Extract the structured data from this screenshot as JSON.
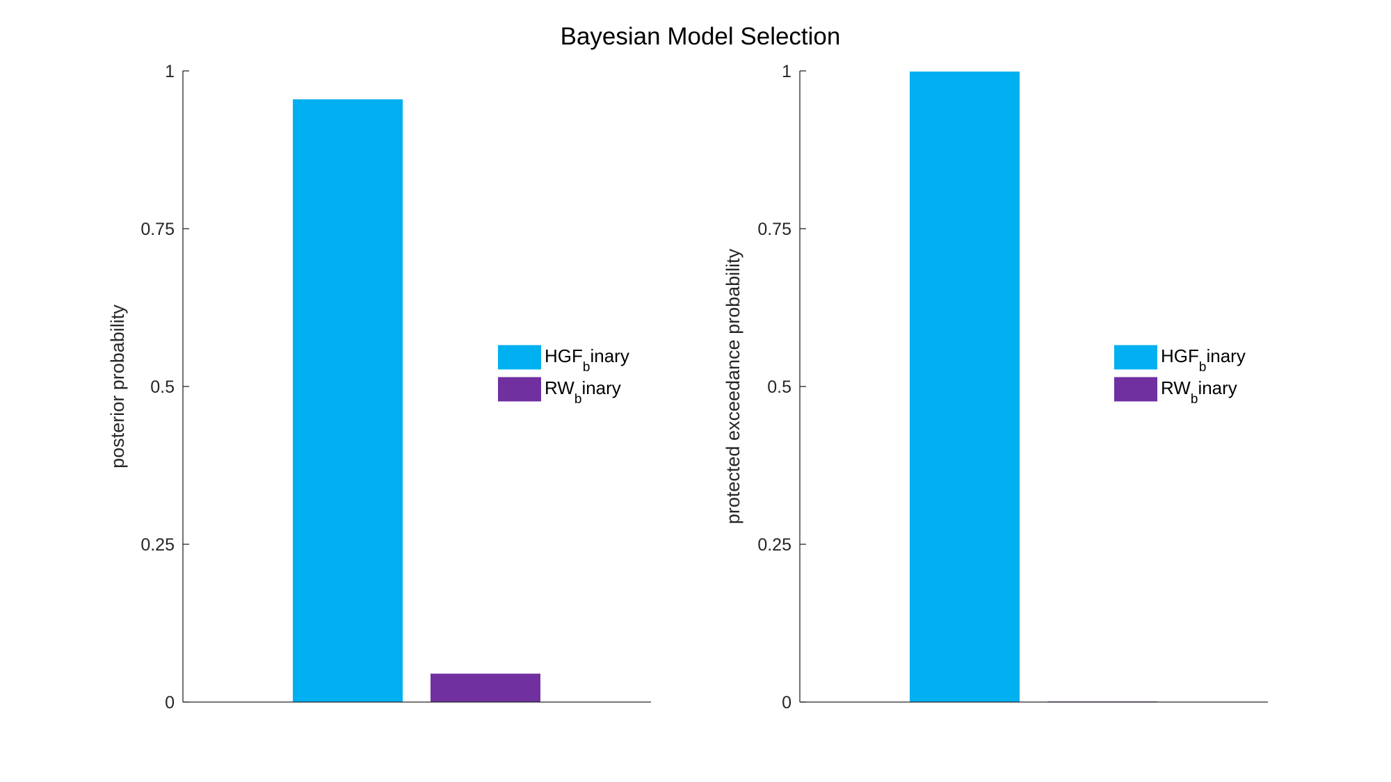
{
  "figure": {
    "title": "Bayesian Model Selection"
  },
  "chart_data": [
    {
      "type": "bar",
      "title": "",
      "xlabel": "",
      "ylabel": "posterior probability",
      "ylim": [
        0,
        1
      ],
      "yticks": [
        0,
        0.25,
        0.5,
        0.75,
        1
      ],
      "ytick_labels": [
        "0",
        "0.25",
        "0.5",
        "0.75",
        "1"
      ],
      "grid": false,
      "legend_position": "right",
      "series": [
        {
          "name_main": "HGF",
          "name_sub": "b",
          "name_rest": "inary",
          "value": 0.955,
          "color": "#00b0f0"
        },
        {
          "name_main": "RW",
          "name_sub": "b",
          "name_rest": "inary",
          "value": 0.045,
          "color": "#7030a0"
        }
      ]
    },
    {
      "type": "bar",
      "title": "",
      "xlabel": "",
      "ylabel": "protected exceedance probability",
      "ylim": [
        0,
        1
      ],
      "yticks": [
        0,
        0.25,
        0.5,
        0.75,
        1
      ],
      "ytick_labels": [
        "0",
        "0.25",
        "0.5",
        "0.75",
        "1"
      ],
      "grid": false,
      "legend_position": "right",
      "series": [
        {
          "name_main": "HGF",
          "name_sub": "b",
          "name_rest": "inary",
          "value": 0.999,
          "color": "#00b0f0"
        },
        {
          "name_main": "RW",
          "name_sub": "b",
          "name_rest": "inary",
          "value": 0.001,
          "color": "#7030a0"
        }
      ]
    }
  ]
}
